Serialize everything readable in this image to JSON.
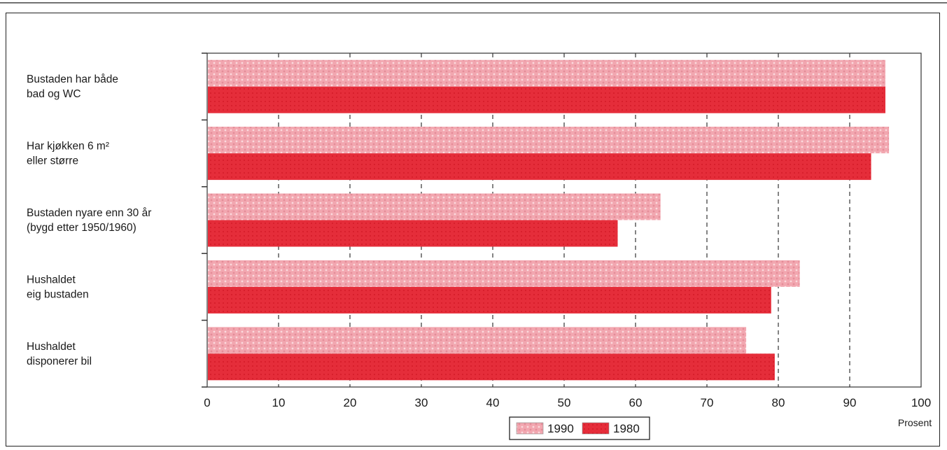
{
  "chart_data": {
    "type": "bar",
    "orientation": "horizontal",
    "categories": [
      [
        "Bustaden har både",
        "bad og WC"
      ],
      [
        "Har kjøkken 6 m²",
        "eller større"
      ],
      [
        "Bustaden nyare enn 30 år",
        "(bygd etter 1950/1960)"
      ],
      [
        "Hushaldet",
        "eig bustaden"
      ],
      [
        "Hushaldet",
        "disponerer bil"
      ]
    ],
    "series": [
      {
        "name": "1990",
        "values": [
          95,
          95.5,
          63.5,
          83,
          75.5
        ],
        "color": "#f2a7b0"
      },
      {
        "name": "1980",
        "values": [
          95,
          93,
          57.5,
          79,
          79.5
        ],
        "color": "#e8303c"
      }
    ],
    "xlim": [
      0,
      100
    ],
    "xticks": [
      0,
      10,
      20,
      30,
      40,
      50,
      60,
      70,
      80,
      90,
      100
    ],
    "xlabel": "Prosent",
    "grid": "dashed vertical",
    "legend_position": "bottom-center",
    "legend_entries": [
      "1990",
      "1980"
    ]
  }
}
